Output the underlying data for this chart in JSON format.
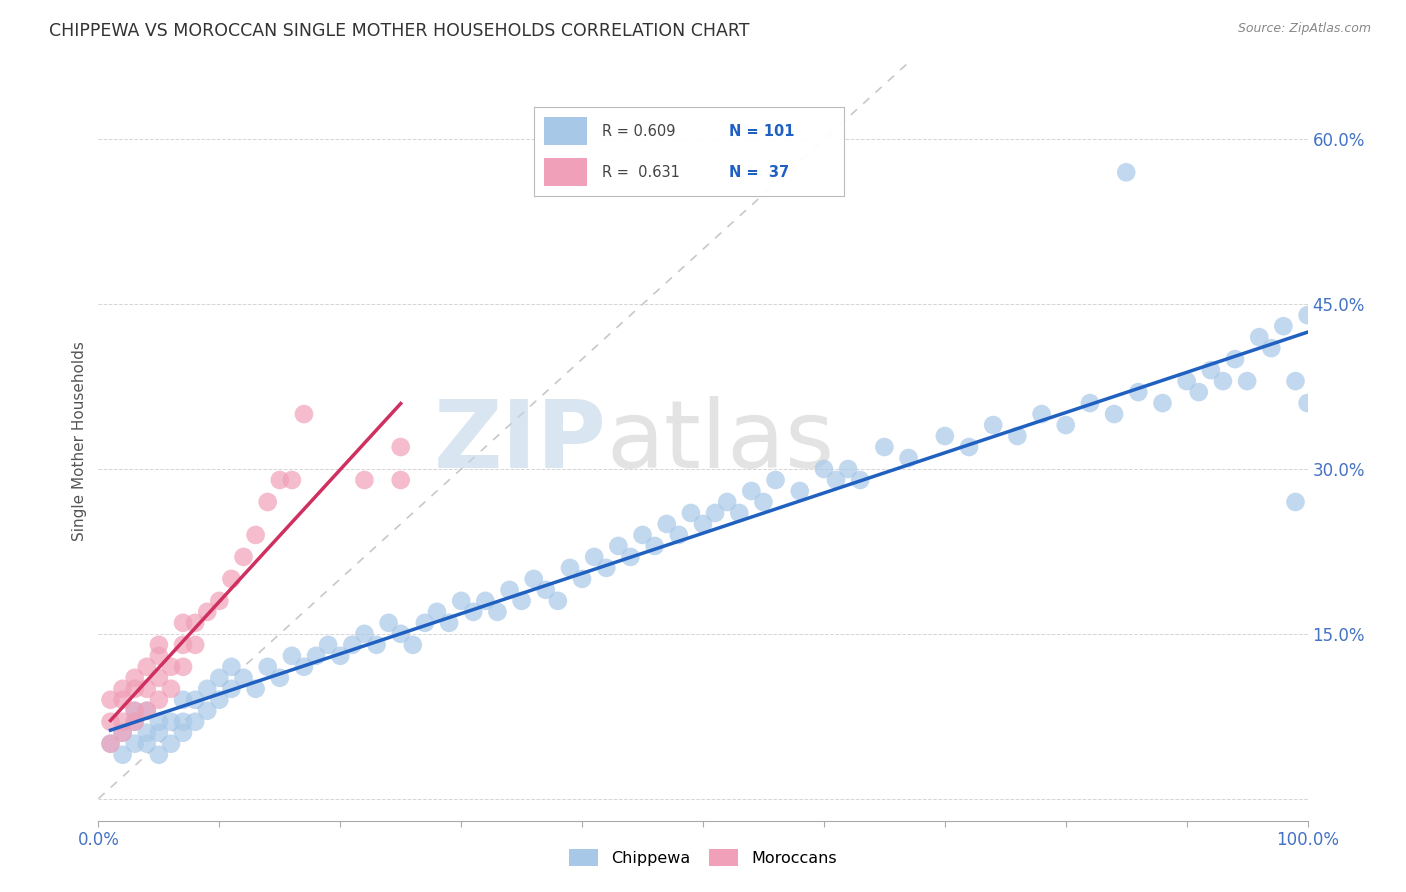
{
  "title": "CHIPPEWA VS MOROCCAN SINGLE MOTHER HOUSEHOLDS CORRELATION CHART",
  "source": "Source: ZipAtlas.com",
  "ylabel": "Single Mother Households",
  "xlim": [
    0,
    1.0
  ],
  "ylim": [
    -0.02,
    0.67
  ],
  "ytick_positions": [
    0.0,
    0.15,
    0.3,
    0.45,
    0.6
  ],
  "yticklabels": [
    "",
    "15.0%",
    "30.0%",
    "45.0%",
    "60.0%"
  ],
  "chippewa_R": 0.609,
  "chippewa_N": 101,
  "moroccan_R": 0.631,
  "moroccan_N": 37,
  "chippewa_color": "#a8c8e8",
  "moroccan_color": "#f0a0b8",
  "chippewa_line_color": "#2060c0",
  "moroccan_line_color": "#d03060",
  "diagonal_color": "#c8c8c8",
  "watermark_zip": "ZIP",
  "watermark_atlas": "atlas",
  "legend_label_chippewa": "Chippewa",
  "legend_label_moroccan": "Moroccans",
  "chippewa_x": [
    0.01,
    0.02,
    0.02,
    0.03,
    0.03,
    0.03,
    0.04,
    0.04,
    0.04,
    0.05,
    0.05,
    0.05,
    0.06,
    0.06,
    0.07,
    0.07,
    0.07,
    0.08,
    0.08,
    0.09,
    0.09,
    0.1,
    0.1,
    0.11,
    0.11,
    0.12,
    0.13,
    0.14,
    0.15,
    0.16,
    0.17,
    0.18,
    0.19,
    0.2,
    0.21,
    0.22,
    0.23,
    0.24,
    0.25,
    0.26,
    0.27,
    0.28,
    0.29,
    0.3,
    0.31,
    0.32,
    0.33,
    0.34,
    0.35,
    0.36,
    0.37,
    0.38,
    0.39,
    0.4,
    0.41,
    0.42,
    0.43,
    0.44,
    0.45,
    0.46,
    0.47,
    0.48,
    0.49,
    0.5,
    0.51,
    0.52,
    0.53,
    0.54,
    0.55,
    0.56,
    0.58,
    0.6,
    0.61,
    0.62,
    0.63,
    0.65,
    0.67,
    0.7,
    0.72,
    0.74,
    0.76,
    0.78,
    0.8,
    0.82,
    0.84,
    0.86,
    0.88,
    0.9,
    0.91,
    0.92,
    0.93,
    0.94,
    0.95,
    0.96,
    0.97,
    0.98,
    0.99,
    0.99,
    1.0,
    1.0,
    0.85
  ],
  "chippewa_y": [
    0.05,
    0.04,
    0.06,
    0.05,
    0.07,
    0.08,
    0.05,
    0.06,
    0.08,
    0.04,
    0.06,
    0.07,
    0.05,
    0.07,
    0.06,
    0.07,
    0.09,
    0.07,
    0.09,
    0.08,
    0.1,
    0.09,
    0.11,
    0.1,
    0.12,
    0.11,
    0.1,
    0.12,
    0.11,
    0.13,
    0.12,
    0.13,
    0.14,
    0.13,
    0.14,
    0.15,
    0.14,
    0.16,
    0.15,
    0.14,
    0.16,
    0.17,
    0.16,
    0.18,
    0.17,
    0.18,
    0.17,
    0.19,
    0.18,
    0.2,
    0.19,
    0.18,
    0.21,
    0.2,
    0.22,
    0.21,
    0.23,
    0.22,
    0.24,
    0.23,
    0.25,
    0.24,
    0.26,
    0.25,
    0.26,
    0.27,
    0.26,
    0.28,
    0.27,
    0.29,
    0.28,
    0.3,
    0.29,
    0.3,
    0.29,
    0.32,
    0.31,
    0.33,
    0.32,
    0.34,
    0.33,
    0.35,
    0.34,
    0.36,
    0.35,
    0.37,
    0.36,
    0.38,
    0.37,
    0.39,
    0.38,
    0.4,
    0.38,
    0.42,
    0.41,
    0.43,
    0.27,
    0.38,
    0.44,
    0.36,
    0.57
  ],
  "moroccan_x": [
    0.01,
    0.01,
    0.01,
    0.02,
    0.02,
    0.02,
    0.02,
    0.03,
    0.03,
    0.03,
    0.03,
    0.04,
    0.04,
    0.04,
    0.05,
    0.05,
    0.05,
    0.05,
    0.06,
    0.06,
    0.07,
    0.07,
    0.07,
    0.08,
    0.08,
    0.09,
    0.1,
    0.11,
    0.12,
    0.13,
    0.14,
    0.15,
    0.16,
    0.17,
    0.22,
    0.25,
    0.25
  ],
  "moroccan_y": [
    0.05,
    0.07,
    0.09,
    0.06,
    0.07,
    0.09,
    0.1,
    0.07,
    0.08,
    0.1,
    0.11,
    0.08,
    0.1,
    0.12,
    0.09,
    0.11,
    0.13,
    0.14,
    0.1,
    0.12,
    0.12,
    0.14,
    0.16,
    0.14,
    0.16,
    0.17,
    0.18,
    0.2,
    0.22,
    0.24,
    0.27,
    0.29,
    0.29,
    0.35,
    0.29,
    0.29,
    0.32
  ]
}
